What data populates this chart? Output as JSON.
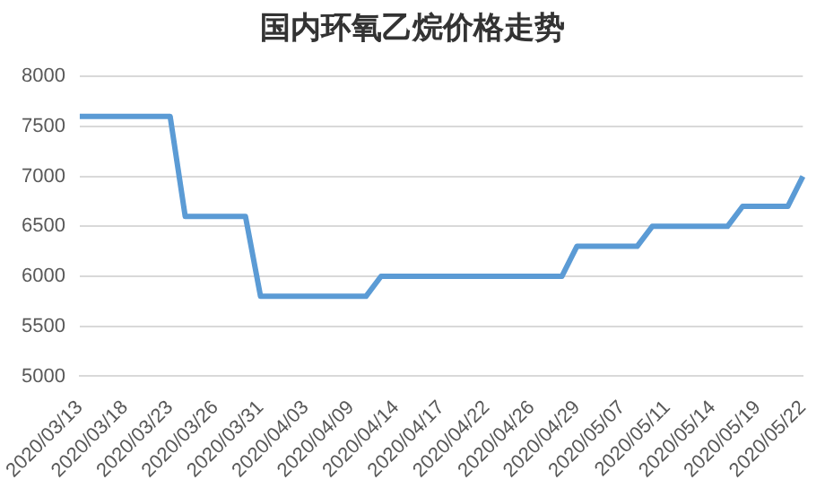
{
  "chart_data": {
    "type": "line",
    "title": "国内环氧乙烷价格走势",
    "categories": [
      "2020/03/13",
      null,
      null,
      "2020/03/18",
      null,
      null,
      "2020/03/23",
      null,
      null,
      "2020/03/26",
      null,
      null,
      "2020/03/31",
      null,
      null,
      "2020/04/03",
      null,
      null,
      "2020/04/09",
      null,
      null,
      "2020/04/14",
      null,
      null,
      "2020/04/17",
      null,
      null,
      "2020/04/22",
      null,
      null,
      "2020/04/26",
      null,
      null,
      "2020/04/29",
      null,
      null,
      "2020/05/07",
      null,
      null,
      "2020/05/11",
      null,
      null,
      "2020/05/14",
      null,
      null,
      "2020/05/19",
      null,
      null,
      "2020/05/22"
    ],
    "series": [
      {
        "color": "#5b9bd5",
        "values": [
          7600,
          7600,
          7600,
          7600,
          7600,
          7600,
          7600,
          6600,
          6600,
          6600,
          6600,
          6600,
          5800,
          5800,
          5800,
          5800,
          5800,
          5800,
          5800,
          5800,
          6000,
          6000,
          6000,
          6000,
          6000,
          6000,
          6000,
          6000,
          6000,
          6000,
          6000,
          6000,
          6000,
          6300,
          6300,
          6300,
          6300,
          6300,
          6500,
          6500,
          6500,
          6500,
          6500,
          6500,
          6700,
          6700,
          6700,
          6700,
          7000
        ]
      }
    ],
    "ylim": [
      5000,
      8000
    ],
    "yticks": [
      5000,
      5500,
      6000,
      6500,
      7000,
      7500,
      8000
    ],
    "grid": "y",
    "legend": false,
    "marker": "none",
    "line_style": "solid"
  }
}
